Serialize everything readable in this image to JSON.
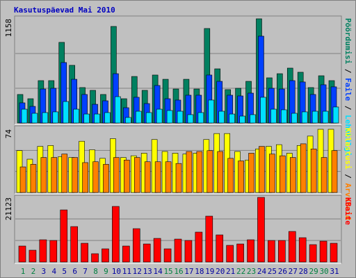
{
  "title": "Kasutuspäevad Mai 2010",
  "legend_separator": " / ",
  "chart_data": [
    {
      "type": "bar",
      "ylim": [
        0,
        1158
      ],
      "yticks": [
        1158
      ],
      "series": [
        {
          "name": "Pöördumisi",
          "color": "#008060",
          "values": [
            317,
            270,
            471,
            471,
            896,
            641,
            394,
            363,
            317,
            1073,
            270,
            517,
            363,
            533,
            486,
            378,
            486,
            378,
            1050,
            602,
            371,
            386,
            463,
            1158,
            502,
            548,
            610,
            564,
            394,
            525,
            471
          ]
        },
        {
          "name": "Faile",
          "color": "#0040ff",
          "values": [
            224,
            185,
            378,
            386,
            672,
            486,
            317,
            208,
            247,
            548,
            170,
            286,
            216,
            417,
            270,
            255,
            309,
            309,
            533,
            463,
            309,
            301,
            332,
            965,
            386,
            378,
            471,
            456,
            317,
            425,
            402
          ]
        },
        {
          "name": "Lehekülgi",
          "color": "#00e0ff",
          "values": [
            154,
            108,
            116,
            124,
            239,
            154,
            100,
            100,
            116,
            293,
            62,
            131,
            116,
            154,
            139,
            131,
            93,
            116,
            255,
            131,
            100,
            77,
            93,
            286,
            154,
            147,
            108,
            124,
            131,
            131,
            178
          ]
        }
      ]
    },
    {
      "type": "bar",
      "ylim": [
        0,
        74
      ],
      "yticks": [
        74
      ],
      "series": [
        {
          "name": "Külastusi",
          "color": "#ffff00",
          "values": [
            49,
            39,
            54,
            55,
            42,
            41,
            60,
            50,
            40,
            63,
            41,
            43,
            46,
            62,
            48,
            46,
            45,
            46,
            62,
            69,
            69,
            48,
            38,
            51,
            54,
            56,
            46,
            55,
            66,
            74,
            74
          ]
        },
        {
          "name": "Arvuteid",
          "color": "#ff8000",
          "values": [
            30,
            33,
            41,
            41,
            45,
            41,
            35,
            36,
            33,
            41,
            38,
            41,
            36,
            36,
            36,
            34,
            48,
            48,
            49,
            48,
            40,
            37,
            46,
            54,
            45,
            43,
            41,
            57,
            51,
            41,
            49
          ]
        }
      ]
    },
    {
      "type": "bar",
      "ylim": [
        0,
        21123
      ],
      "yticks": [
        21123
      ],
      "categories": [
        "1",
        "2",
        "3",
        "4",
        "5",
        "6",
        "7",
        "8",
        "9",
        "10",
        "11",
        "12",
        "13",
        "14",
        "15",
        "16",
        "17",
        "18",
        "19",
        "20",
        "21",
        "22",
        "23",
        "24",
        "25",
        "26",
        "27",
        "28",
        "29",
        "30",
        "31"
      ],
      "category_colors": [
        "#008040",
        "#008040",
        "#0000a0",
        "#0000a0",
        "#0000a0",
        "#0000a0",
        "#0000a0",
        "#008040",
        "#008040",
        "#0000a0",
        "#0000a0",
        "#0000a0",
        "#0000a0",
        "#0000a0",
        "#008040",
        "#008040",
        "#0000a0",
        "#0000a0",
        "#0000a0",
        "#0000a0",
        "#0000a0",
        "#008040",
        "#008040",
        "#0000a0",
        "#0000a0",
        "#0000a0",
        "#0000a0",
        "#0000a0",
        "#008040",
        "#008040",
        "#0000a0"
      ],
      "series": [
        {
          "name": "KBaite",
          "color": "#ff0000",
          "values": [
            5224,
            3860,
            7270,
            7040,
            17030,
            11580,
            6130,
            2720,
            4310,
            18170,
            5224,
            10900,
            5900,
            7720,
            4310,
            7490,
            7040,
            9770,
            14990,
            8860,
            5450,
            5900,
            7270,
            21123,
            7040,
            7040,
            9990,
            7950,
            5680,
            6810,
            6130
          ]
        }
      ]
    }
  ]
}
